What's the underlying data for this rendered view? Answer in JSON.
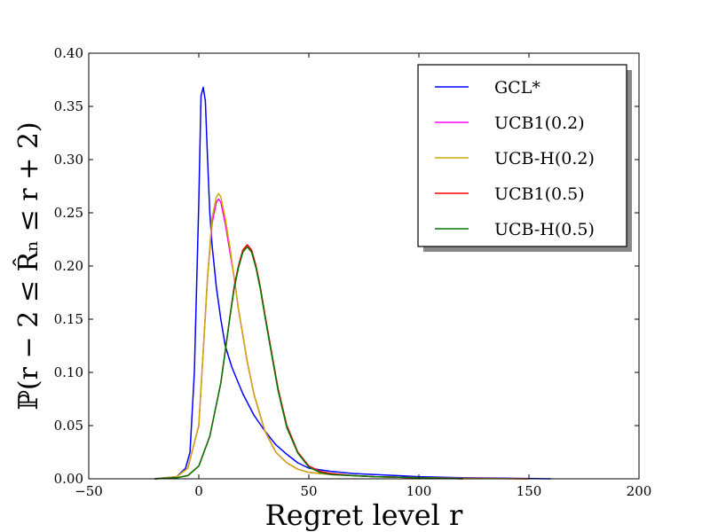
{
  "chart_data": {
    "type": "line",
    "title": "",
    "xlabel": "Regret level r",
    "ylabel": "ℙ(r − 2 ≤ R̂ₙ ≤ r + 2)",
    "xlim": [
      -50,
      200
    ],
    "ylim": [
      0.0,
      0.4
    ],
    "xticks": [
      -50,
      0,
      50,
      100,
      150,
      200
    ],
    "xtick_labels": [
      "−50",
      "0",
      "50",
      "100",
      "150",
      "200"
    ],
    "yticks": [
      0.0,
      0.05,
      0.1,
      0.15,
      0.2,
      0.25,
      0.3,
      0.35,
      0.4
    ],
    "ytick_labels": [
      "0.00",
      "0.05",
      "0.10",
      "0.15",
      "0.20",
      "0.25",
      "0.30",
      "0.35",
      "0.40"
    ],
    "grid": false,
    "legend_position": "top-right",
    "series": [
      {
        "name": "GCL*",
        "color": "#0000ff",
        "x": [
          -20,
          -10,
          -6,
          -4,
          -2,
          0,
          1,
          2,
          3,
          4,
          5,
          6,
          8,
          10,
          12,
          15,
          18,
          20,
          25,
          30,
          35,
          40,
          45,
          50,
          60,
          70,
          80,
          90,
          100,
          120,
          140,
          160
        ],
        "y": [
          0.0,
          0.002,
          0.01,
          0.025,
          0.1,
          0.26,
          0.36,
          0.368,
          0.355,
          0.3,
          0.25,
          0.22,
          0.18,
          0.15,
          0.125,
          0.105,
          0.09,
          0.08,
          0.06,
          0.045,
          0.032,
          0.023,
          0.015,
          0.01,
          0.007,
          0.005,
          0.004,
          0.003,
          0.002,
          0.001,
          0.0005,
          0.0
        ]
      },
      {
        "name": "UCB1(0.2)",
        "color": "#ff00ff",
        "x": [
          -20,
          -10,
          -5,
          0,
          2,
          4,
          6,
          8,
          9,
          10,
          12,
          14,
          16,
          18,
          20,
          22,
          25,
          30,
          35,
          40,
          45,
          50,
          60,
          70,
          80,
          100,
          120,
          150
        ],
        "y": [
          0.0,
          0.002,
          0.01,
          0.05,
          0.12,
          0.19,
          0.24,
          0.26,
          0.263,
          0.26,
          0.24,
          0.215,
          0.19,
          0.16,
          0.135,
          0.11,
          0.08,
          0.045,
          0.025,
          0.015,
          0.009,
          0.006,
          0.004,
          0.003,
          0.002,
          0.001,
          0.0005,
          0.0
        ]
      },
      {
        "name": "UCB-H(0.2)",
        "color": "#ccaa00",
        "x": [
          -20,
          -10,
          -5,
          0,
          2,
          4,
          6,
          8,
          9,
          10,
          12,
          14,
          16,
          18,
          20,
          22,
          25,
          30,
          35,
          40,
          45,
          50,
          60,
          70,
          80,
          100,
          120,
          150
        ],
        "y": [
          0.0,
          0.002,
          0.01,
          0.05,
          0.12,
          0.19,
          0.245,
          0.265,
          0.268,
          0.265,
          0.245,
          0.22,
          0.19,
          0.16,
          0.135,
          0.11,
          0.08,
          0.045,
          0.025,
          0.015,
          0.009,
          0.006,
          0.004,
          0.003,
          0.002,
          0.001,
          0.0005,
          0.0
        ]
      },
      {
        "name": "UCB1(0.5)",
        "color": "#ff0000",
        "x": [
          -20,
          -10,
          -5,
          0,
          5,
          10,
          12,
          14,
          16,
          18,
          20,
          22,
          24,
          26,
          28,
          30,
          33,
          36,
          40,
          45,
          50,
          55,
          60,
          70,
          80,
          100,
          120
        ],
        "y": [
          0.0,
          0.001,
          0.003,
          0.012,
          0.04,
          0.09,
          0.12,
          0.15,
          0.18,
          0.2,
          0.215,
          0.22,
          0.215,
          0.2,
          0.18,
          0.155,
          0.12,
          0.085,
          0.05,
          0.025,
          0.012,
          0.007,
          0.005,
          0.003,
          0.002,
          0.001,
          0.0
        ]
      },
      {
        "name": "UCB-H(0.5)",
        "color": "#007700",
        "x": [
          -20,
          -10,
          -5,
          0,
          5,
          10,
          12,
          14,
          16,
          18,
          20,
          22,
          24,
          26,
          28,
          30,
          33,
          36,
          40,
          45,
          50,
          55,
          60,
          70,
          80,
          100,
          120
        ],
        "y": [
          0.0,
          0.001,
          0.003,
          0.012,
          0.04,
          0.09,
          0.12,
          0.15,
          0.178,
          0.198,
          0.213,
          0.218,
          0.213,
          0.198,
          0.178,
          0.153,
          0.118,
          0.083,
          0.048,
          0.024,
          0.011,
          0.006,
          0.004,
          0.003,
          0.002,
          0.001,
          0.0
        ]
      }
    ]
  }
}
